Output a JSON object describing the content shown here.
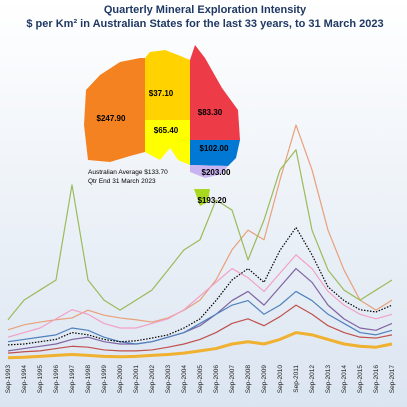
{
  "chart_data": {
    "type": "line",
    "title": "Quarterly Mineral Exploration Intensity",
    "subtitle": "$ per Km² in Australian States for the last 33 years, to 31 March 2023",
    "categories": [
      "Sep-1993",
      "Sep-1994",
      "Sep-1995",
      "Sep-1996",
      "Sep-1997",
      "Sep-1998",
      "Sep-1999",
      "Sep-2000",
      "Sep-2001",
      "Sep-2002",
      "Sep-2003",
      "Sep-2004",
      "Sep-2005",
      "Sep-2006",
      "Sep-2007",
      "Sep-2008",
      "Sep-2009",
      "Sep-2010",
      "Sep-2011",
      "Sep-2012",
      "Sep-2013",
      "Sep-2014",
      "Sep-2015",
      "Sep-2016",
      "Sep-2017"
    ],
    "ylim": [
      0,
      700
    ],
    "series": [
      {
        "color": "#e8a07a",
        "values": [
          66,
          77,
          83,
          88,
          92,
          109,
          98,
          92,
          88,
          83,
          92,
          109,
          131,
          175,
          241,
          284,
          263,
          394,
          514,
          416,
          284,
          197,
          131,
          109,
          131
        ]
      },
      {
        "color": "#9bbb59",
        "values": [
          88,
          131,
          153,
          175,
          383,
          175,
          131,
          109,
          131,
          153,
          197,
          241,
          263,
          350,
          328,
          219,
          306,
          416,
          460,
          284,
          197,
          153,
          131,
          153,
          175
        ]
      },
      {
        "color": "#f2a0c8",
        "values": [
          50,
          60,
          70,
          90,
          110,
          100,
          80,
          70,
          70,
          80,
          90,
          110,
          140,
          170,
          200,
          180,
          150,
          190,
          230,
          200,
          150,
          120,
          100,
          90,
          100
        ]
      },
      {
        "color": "#8064a2",
        "values": [
          20,
          25,
          30,
          35,
          45,
          50,
          40,
          35,
          35,
          40,
          50,
          60,
          75,
          100,
          130,
          150,
          120,
          160,
          200,
          170,
          120,
          90,
          70,
          65,
          80
        ]
      },
      {
        "color": "#4f81bd",
        "values": [
          40,
          45,
          50,
          55,
          70,
          65,
          50,
          40,
          35,
          40,
          50,
          60,
          80,
          100,
          120,
          130,
          100,
          120,
          150,
          130,
          100,
          80,
          60,
          55,
          65
        ]
      },
      {
        "color": "#c0504d",
        "values": [
          15,
          18,
          20,
          25,
          30,
          28,
          22,
          20,
          20,
          22,
          28,
          35,
          45,
          60,
          80,
          90,
          75,
          95,
          120,
          100,
          75,
          60,
          50,
          48,
          55
        ]
      },
      {
        "color": "#f0b030",
        "values": [
          5,
          6,
          8,
          10,
          12,
          10,
          8,
          7,
          8,
          10,
          12,
          15,
          20,
          25,
          35,
          40,
          35,
          45,
          60,
          55,
          45,
          35,
          30,
          28,
          35
        ]
      },
      {
        "color": "#000000",
        "dash": true,
        "values": [
          33,
          35,
          40,
          45,
          60,
          55,
          45,
          40,
          42,
          48,
          55,
          70,
          90,
          130,
          175,
          200,
          170,
          240,
          290,
          230,
          160,
          130,
          110,
          105,
          120
        ]
      }
    ],
    "annotations": [
      "$247.90",
      "$37.10",
      "$83.30",
      "$65.40",
      "$102.00",
      "$203.00",
      "$193.20",
      "Australian Average $133.70",
      "Qtr End 31 March 2023"
    ]
  }
}
